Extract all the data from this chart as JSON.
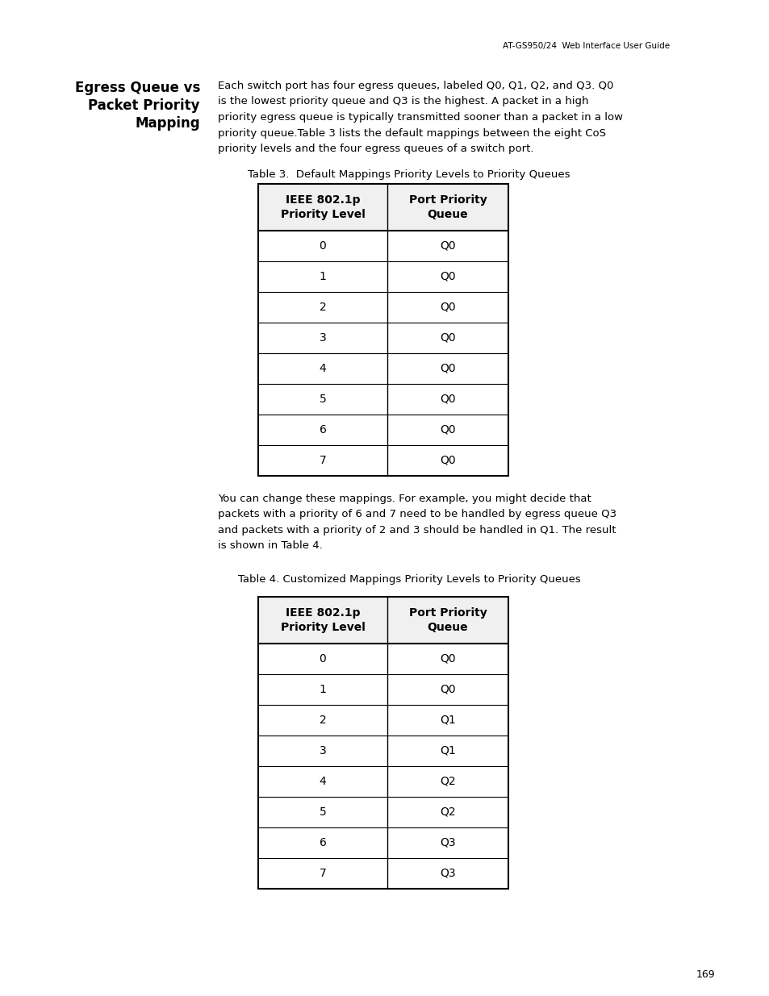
{
  "page_header": "AT-GS950/24  Web Interface User Guide",
  "page_number": "169",
  "section_title_line1": "Egress Queue vs",
  "section_title_line2": "Packet Priority",
  "section_title_line3": "Mapping",
  "intro_text_lines": [
    "Each switch port has four egress queues, labeled Q0, Q1, Q2, and Q3. Q0",
    "is the lowest priority queue and Q3 is the highest. A packet in a high",
    "priority egress queue is typically transmitted sooner than a packet in a low",
    "priority queue.Table 3 lists the default mappings between the eight CoS",
    "priority levels and the four egress queues of a switch port."
  ],
  "table3_caption": "Table 3.  Default Mappings Priority Levels to Priority Queues",
  "table3_col1_header": "IEEE 802.1p\nPriority Level",
  "table3_col2_header": "Port Priority\nQueue",
  "table3_data": [
    [
      "0",
      "Q0"
    ],
    [
      "1",
      "Q0"
    ],
    [
      "2",
      "Q0"
    ],
    [
      "3",
      "Q0"
    ],
    [
      "4",
      "Q0"
    ],
    [
      "5",
      "Q0"
    ],
    [
      "6",
      "Q0"
    ],
    [
      "7",
      "Q0"
    ]
  ],
  "middle_text_lines": [
    "You can change these mappings. For example, you might decide that",
    "packets with a priority of 6 and 7 need to be handled by egress queue Q3",
    "and packets with a priority of 2 and 3 should be handled in Q1. The result",
    "is shown in Table 4."
  ],
  "table4_caption": "Table 4. Customized Mappings Priority Levels to Priority Queues",
  "table4_col1_header": "IEEE 802.1p\nPriority Level",
  "table4_col2_header": "Port Priority\nQueue",
  "table4_data": [
    [
      "0",
      "Q0"
    ],
    [
      "1",
      "Q0"
    ],
    [
      "2",
      "Q1"
    ],
    [
      "3",
      "Q1"
    ],
    [
      "4",
      "Q2"
    ],
    [
      "5",
      "Q2"
    ],
    [
      "6",
      "Q3"
    ],
    [
      "7",
      "Q3"
    ]
  ],
  "bg_color": "#ffffff",
  "text_color": "#000000",
  "table_line_color": "#000000"
}
